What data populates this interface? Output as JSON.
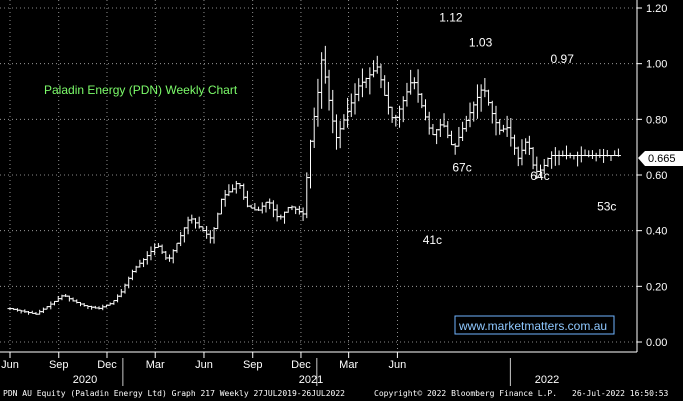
{
  "chart_data": {
    "type": "candlestick",
    "title": "Paladin Energy (PDN) Weekly Chart",
    "ylim": [
      0.0,
      1.2
    ],
    "yticks": [
      "0.00",
      "0.20",
      "0.40",
      "0.60",
      "0.80",
      "1.00",
      "1.20"
    ],
    "month_ticks": [
      {
        "label": "Jun",
        "date": "2019-06-01"
      },
      {
        "label": "Sep",
        "date": "2019-09-01"
      },
      {
        "label": "Dec",
        "date": "2019-12-01"
      },
      {
        "label": "Mar",
        "date": "2020-03-01"
      },
      {
        "label": "Jun",
        "date": "2020-06-01"
      },
      {
        "label": "Sep",
        "date": "2020-09-01"
      },
      {
        "label": "Dec",
        "date": "2020-12-01"
      },
      {
        "label": "Mar",
        "date": "2021-03-01"
      },
      {
        "label": "Jun",
        "date": "2021-06-01"
      }
    ],
    "year_labels": [
      "2020",
      "2021",
      "2022"
    ],
    "last_price": "0.665",
    "last_price_value": 0.665,
    "watermark": "www.marketmatters.com.au",
    "annotations": [
      {
        "text": "1.12",
        "date": "2021-09-10",
        "value": 1.13,
        "pos": "above"
      },
      {
        "text": "1.03",
        "date": "2021-11-05",
        "value": 1.04,
        "pos": "above"
      },
      {
        "text": "67c",
        "date": "2021-10-01",
        "value": 0.67,
        "pos": "below"
      },
      {
        "text": "41c",
        "date": "2021-08-06",
        "value": 0.41,
        "pos": "below"
      },
      {
        "text": "64c",
        "date": "2022-02-25",
        "value": 0.64,
        "pos": "below"
      },
      {
        "text": "0.97",
        "date": "2022-04-08",
        "value": 0.98,
        "pos": "above"
      },
      {
        "text": "53c",
        "date": "2022-07-01",
        "value": 0.53,
        "pos": "below"
      }
    ],
    "anchors": [
      [
        "2019-06-01",
        0.12
      ],
      [
        "2019-07-20",
        0.1
      ],
      [
        "2019-08-20",
        0.14
      ],
      [
        "2019-09-10",
        0.17
      ],
      [
        "2019-09-25",
        0.15
      ],
      [
        "2019-10-20",
        0.13
      ],
      [
        "2019-11-15",
        0.12
      ],
      [
        "2019-12-10",
        0.14
      ],
      [
        "2019-12-28",
        0.18
      ],
      [
        "2020-01-20",
        0.26
      ],
      [
        "2020-02-10",
        0.3
      ],
      [
        "2020-03-05",
        0.35
      ],
      [
        "2020-03-25",
        0.29
      ],
      [
        "2020-04-15",
        0.37
      ],
      [
        "2020-05-05",
        0.45
      ],
      [
        "2020-05-25",
        0.41
      ],
      [
        "2020-06-15",
        0.37
      ],
      [
        "2020-07-05",
        0.52
      ],
      [
        "2020-07-25",
        0.55
      ],
      [
        "2020-08-05",
        0.58
      ],
      [
        "2020-08-20",
        0.49
      ],
      [
        "2020-09-10",
        0.47
      ],
      [
        "2020-09-30",
        0.51
      ],
      [
        "2020-10-20",
        0.44
      ],
      [
        "2020-11-10",
        0.49
      ],
      [
        "2020-12-05",
        0.46
      ],
      [
        "2020-12-20",
        0.74
      ],
      [
        "2021-01-01",
        0.88
      ],
      [
        "2021-01-10",
        1.03
      ],
      [
        "2021-01-20",
        0.9
      ],
      [
        "2021-02-05",
        0.73
      ],
      [
        "2021-02-25",
        0.82
      ],
      [
        "2021-03-20",
        0.92
      ],
      [
        "2021-04-10",
        0.96
      ],
      [
        "2021-04-25",
        0.99
      ],
      [
        "2021-05-10",
        0.87
      ],
      [
        "2021-05-25",
        0.79
      ],
      [
        "2021-06-15",
        0.88
      ],
      [
        "2021-06-30",
        0.95
      ],
      [
        "2021-07-15",
        0.86
      ],
      [
        "2021-08-05",
        0.74
      ],
      [
        "2021-08-25",
        0.79
      ],
      [
        "2021-09-15",
        0.69
      ],
      [
        "2021-10-05",
        0.78
      ],
      [
        "2021-10-25",
        0.86
      ],
      [
        "2021-11-10",
        0.92
      ],
      [
        "2021-11-25",
        0.83
      ],
      [
        "2021-12-10",
        0.76
      ],
      [
        "2021-12-25",
        0.77
      ],
      [
        "2022-01-15",
        0.66
      ],
      [
        "2022-02-01",
        0.73
      ],
      [
        "2022-02-15",
        0.61
      ],
      [
        "2022-03-01",
        0.62
      ],
      [
        "2022-03-15",
        0.67
      ]
    ]
  },
  "footer": {
    "left": "PDN AU Equity (Paladin Energy Ltd) Graph 217  Weekly 27JUL2019-26JUL2022",
    "center": "Copyright© 2022 Bloomberg Finance L.P.",
    "right": "26-Jul-2022 16:50:53"
  }
}
